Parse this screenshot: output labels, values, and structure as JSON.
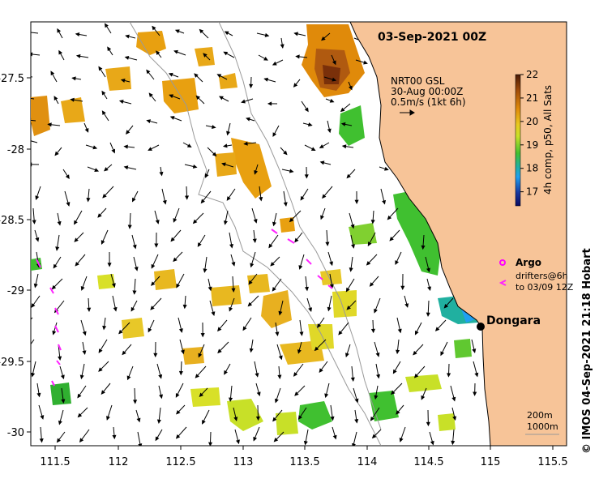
{
  "title": "03-Sep-2021 00Z",
  "current_info": {
    "line1": "NRT00 GSL",
    "line2": "30-Aug 00:00Z",
    "line3": "0.5m/s (1kt 6h)"
  },
  "colorbar": {
    "label": "4h comp, p50, All Sats",
    "ticks": [
      "22",
      "21",
      "20",
      "19",
      "18",
      "17"
    ],
    "min": 16.4,
    "max": 22,
    "stops": [
      "#4a1a06",
      "#a04c0a",
      "#e08a0a",
      "#e8c820",
      "#c8e028",
      "#40c030",
      "#20b0a0",
      "#20a0f0",
      "#1838a0",
      "#0a0a60"
    ]
  },
  "axes": {
    "x_ticks": [
      "111.5",
      "112",
      "112.5",
      "113",
      "113.5",
      "114",
      "114.5",
      "115",
      "115.5"
    ],
    "y_ticks": [
      "-27.5",
      "-28",
      "-28.5",
      "-29",
      "-29.5",
      "-30"
    ]
  },
  "place": {
    "name": "Dongara"
  },
  "legend": {
    "argo": "Argo",
    "drifters_line1": "drifters@6h",
    "drifters_line2": "to 03/09 12Z"
  },
  "isobaths": {
    "line1": "200m",
    "line2": "1000m"
  },
  "credit": "© IMOS 04-Sep-2021 21:18 Hobart",
  "colors": {
    "land": "#f7c498",
    "argo": "#ff00ff",
    "drifter": "#ff22ff",
    "bathymetry": "#999999"
  }
}
